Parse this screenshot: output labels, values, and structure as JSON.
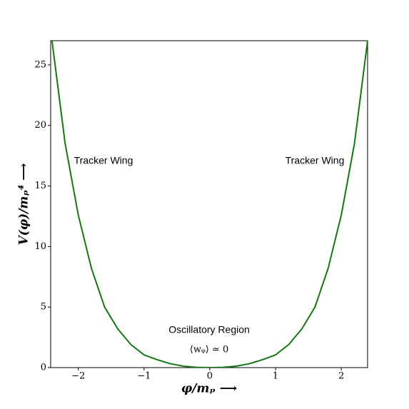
{
  "chart_data": {
    "type": "line",
    "x_label": "φ/mₚ ⟶",
    "y_label": "V(φ)/mₚ⁴ ⟶",
    "annotations": [
      "Tracker Wing",
      "Tracker Wing",
      "Oscillatory  Region",
      "⟨wᵩ⟩ ≃ 0"
    ],
    "x": [
      -2.4,
      -2.2,
      -2.0,
      -1.8,
      -1.6,
      -1.4,
      -1.2,
      -1.0,
      -0.8,
      -0.6,
      -0.4,
      -0.2,
      0,
      0.2,
      0.4,
      0.6,
      0.8,
      1.0,
      1.2,
      1.4,
      1.6,
      1.8,
      2.0,
      2.2,
      2.4
    ],
    "series": [
      {
        "color": "#127812",
        "values": [
          27,
          18.5,
          12.6,
          8.2,
          5,
          3.2,
          1.9,
          1.05,
          0.65,
          0.32,
          0.12,
          0.02,
          0,
          0.02,
          0.12,
          0.32,
          0.65,
          1.05,
          1.9,
          3.2,
          5,
          8.2,
          12.6,
          18.5,
          27
        ]
      }
    ],
    "xlim": [
      -2.42,
      2.4
    ],
    "ylim": [
      0,
      27
    ],
    "xticks": [
      {
        "value": -2,
        "label": "−2"
      },
      {
        "value": -1,
        "label": "−1"
      },
      0,
      1,
      2
    ],
    "yticks": [
      0,
      5,
      10,
      15,
      20,
      25
    ],
    "grid": false
  }
}
